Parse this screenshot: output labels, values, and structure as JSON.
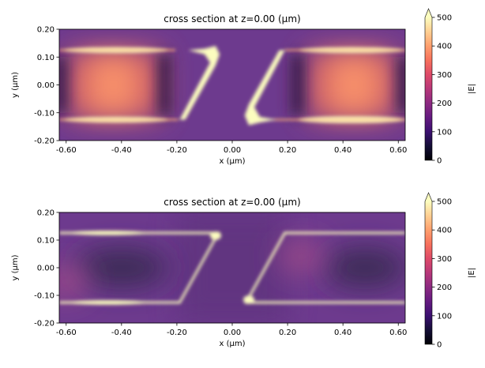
{
  "chart_data": [
    {
      "type": "heatmap",
      "title": "cross section at z=0.00 (µm)",
      "xlabel": "x (µm)",
      "ylabel": "y (µm)",
      "xlim": [
        -0.625,
        0.625
      ],
      "ylim": [
        -0.2,
        0.2
      ],
      "xticks": [
        "-0.60",
        "-0.40",
        "-0.20",
        "0.00",
        "0.20",
        "0.40",
        "0.60"
      ],
      "xtick_values": [
        -0.6,
        -0.4,
        -0.2,
        0.0,
        0.2,
        0.4,
        0.6
      ],
      "yticks": [
        "-0.20",
        "-0.10",
        "0.00",
        "0.10",
        "0.20"
      ],
      "ytick_values": [
        -0.2,
        -0.1,
        0.0,
        0.1,
        0.2
      ],
      "colormap": "magma",
      "colorbar": {
        "label": "|E|",
        "range": [
          0,
          500
        ],
        "ticks": [
          "0",
          "100",
          "200",
          "300",
          "400",
          "500"
        ],
        "tick_values": [
          0,
          100,
          200,
          300,
          400,
          500
        ],
        "extend": "max"
      }
    },
    {
      "type": "heatmap",
      "title": "cross section at z=0.00 (µm)",
      "xlabel": "x (µm)",
      "ylabel": "y (µm)",
      "xlim": [
        -0.625,
        0.625
      ],
      "ylim": [
        -0.2,
        0.2
      ],
      "xticks": [
        "-0.60",
        "-0.40",
        "-0.20",
        "0.00",
        "0.20",
        "0.40",
        "0.60"
      ],
      "xtick_values": [
        -0.6,
        -0.4,
        -0.2,
        0.0,
        0.2,
        0.4,
        0.6
      ],
      "yticks": [
        "-0.20",
        "-0.10",
        "0.00",
        "0.10",
        "0.20"
      ],
      "ytick_values": [
        -0.2,
        -0.1,
        0.0,
        0.1,
        0.2
      ],
      "colormap": "magma",
      "colorbar": {
        "label": "|E|",
        "range": [
          0,
          500
        ],
        "ticks": [
          "0",
          "100",
          "200",
          "300",
          "400",
          "500"
        ],
        "tick_values": [
          0,
          100,
          200,
          300,
          400,
          500
        ],
        "extend": "max"
      }
    }
  ]
}
